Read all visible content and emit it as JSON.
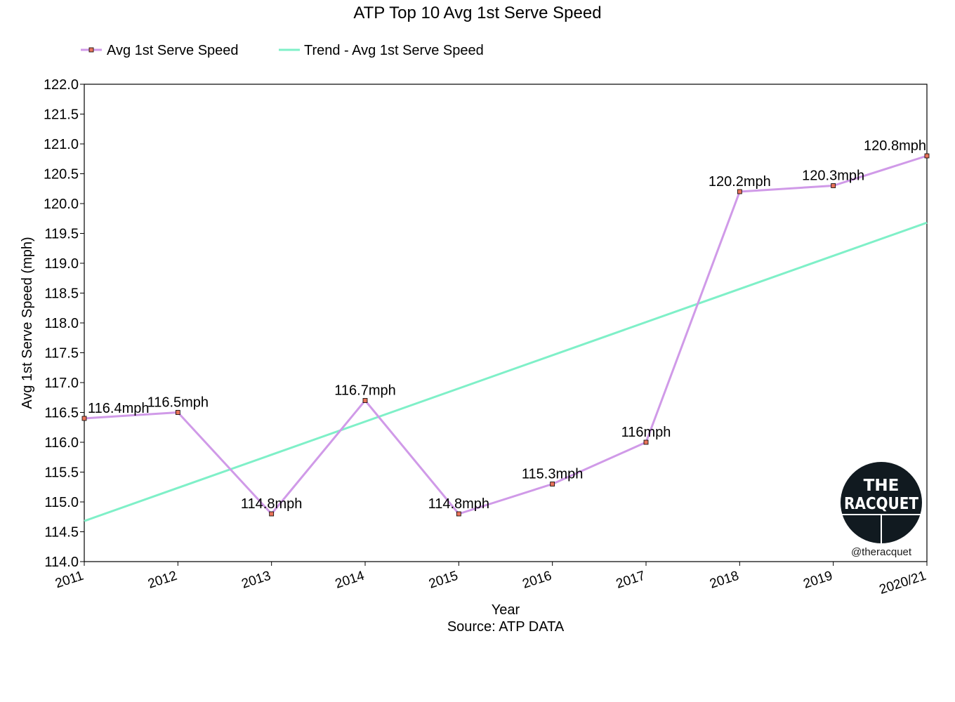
{
  "chart_data": {
    "type": "line",
    "title": "ATP Top 10 Avg 1st Serve Speed",
    "xlabel": "Year",
    "source_note": "Source: ATP DATA",
    "ylabel": "Avg 1st Serve Speed (mph)",
    "categories": [
      "2011",
      "2012",
      "2013",
      "2014",
      "2015",
      "2016",
      "2017",
      "2018",
      "2019",
      "2020/21"
    ],
    "ylim": [
      114.0,
      122.0
    ],
    "yticks": [
      "114.0",
      "114.5",
      "115.0",
      "115.5",
      "116.0",
      "116.5",
      "117.0",
      "117.5",
      "118.0",
      "118.5",
      "119.0",
      "119.5",
      "120.0",
      "120.5",
      "121.0",
      "121.5",
      "122.0"
    ],
    "grid": false,
    "legend_position": "top-left",
    "series": [
      {
        "name": "Avg 1st Serve Speed",
        "color": "#d09ae8",
        "marker_color": "#e8735a",
        "values": [
          116.4,
          116.5,
          114.8,
          116.7,
          114.8,
          115.3,
          116.0,
          120.2,
          120.3,
          120.8
        ],
        "data_labels": [
          "116.4mph",
          "116.5mph",
          "114.8mph",
          "116.7mph",
          "114.8mph",
          "115.3mph",
          "116mph",
          "120.2mph",
          "120.3mph",
          "120.8mph"
        ]
      },
      {
        "name": "Trend - Avg 1st Serve Speed",
        "color": "#7ff0c8",
        "trend_start": 114.68,
        "trend_end": 119.68
      }
    ]
  },
  "logo": {
    "line1": "THE",
    "line2": "RACQUET",
    "handle": "@theracquet",
    "bg_color": "#111a20"
  }
}
